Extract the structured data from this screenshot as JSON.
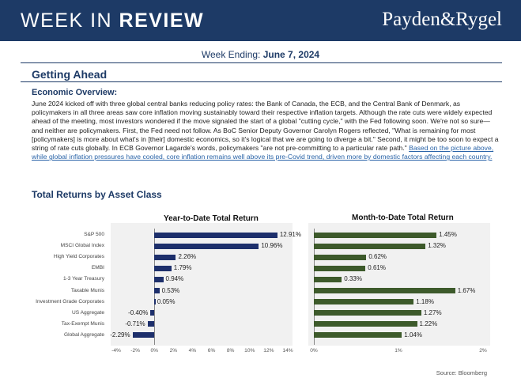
{
  "header": {
    "title_part1": "WEEK IN ",
    "title_part2": "REVIEW",
    "brand": "Payden&Rygel"
  },
  "week": {
    "label": "Week Ending: ",
    "date": "June 7, 2024"
  },
  "section": {
    "title": "Getting Ahead",
    "subtitle": "Economic Overview:",
    "body": "June 2024 kicked off with three global central banks reducing policy rates: the Bank of Canada, the ECB, and the Central Bank of Denmark, as policymakers in all three areas saw core inflation moving sustainably toward their respective inflation targets. Although the rate cuts were widely expected ahead of the meeting, most investors wondered if the move signaled the start of a global \"cutting cycle,\" with the Fed following soon. We're not so sure—and neither are policymakers. First, the Fed need not follow. As BoC Senior Deputy Governor Carolyn Rogers reflected, \"What is remaining for most [policymakers] is more about what's in [their] domestic economics, so it's logical that we are going to diverge a bit.\" Second, it might be too soon to expect a string of rate cuts globally. In ECB Governor Lagarde's words, policymakers \"are not pre-committing to a particular rate path.\" ",
    "link": "Based on the picture above, while global inflation pressures have cooled, core inflation remains well above its pre-Covid trend, driven more by domestic factors affecting each country."
  },
  "returns_title": "Total Returns by Asset Class",
  "chart_data": [
    {
      "type": "bar",
      "orientation": "horizontal",
      "title": "Year-to-Date Total Return",
      "categories": [
        "S&P 500",
        "MSCI Global Index",
        "High Yield Corporates",
        "EMBI",
        "1-3 Year Treasury",
        "Taxable Munis",
        "Investment Grade Corporates",
        "US Aggregate",
        "Tax-Exempt Munis",
        "Global Aggregate"
      ],
      "values": [
        12.91,
        10.96,
        2.26,
        1.79,
        0.94,
        0.53,
        0.05,
        -0.4,
        -0.71,
        -2.29
      ],
      "labels": [
        "12.91%",
        "10.96%",
        "2.26%",
        "1.79%",
        "0.94%",
        "0.53%",
        "0.05%",
        "-0.40%",
        "-0.71%",
        "-2.29%"
      ],
      "xlim": [
        -4,
        14
      ],
      "ticks": [
        -4,
        -2,
        0,
        2,
        4,
        6,
        8,
        10,
        12,
        14
      ],
      "tick_labels": [
        "-4%",
        "-2%",
        "0%",
        "2%",
        "4%",
        "6%",
        "8%",
        "10%",
        "12%",
        "14%"
      ],
      "color": "#1d2f6b"
    },
    {
      "type": "bar",
      "orientation": "horizontal",
      "title": "Month-to-Date Total Return",
      "categories": [
        "S&P 500",
        "MSCI Global Index",
        "High Yield Corporates",
        "EMBI",
        "1-3 Year Treasury",
        "Taxable Munis",
        "Investment Grade Corporates",
        "US Aggregate",
        "Tax-Exempt Munis",
        "Global Aggregate"
      ],
      "values": [
        1.45,
        1.32,
        0.62,
        0.61,
        0.33,
        1.67,
        1.18,
        1.27,
        1.22,
        1.04
      ],
      "labels": [
        "1.45%",
        "1.32%",
        "0.62%",
        "0.61%",
        "0.33%",
        "1.67%",
        "1.18%",
        "1.27%",
        "1.22%",
        "1.04%"
      ],
      "xlim": [
        0,
        2
      ],
      "ticks": [
        0,
        1,
        2
      ],
      "tick_labels": [
        "0%",
        "1%",
        "2%"
      ],
      "color": "#3d5a2b"
    }
  ],
  "source": "Source: Bloomberg"
}
